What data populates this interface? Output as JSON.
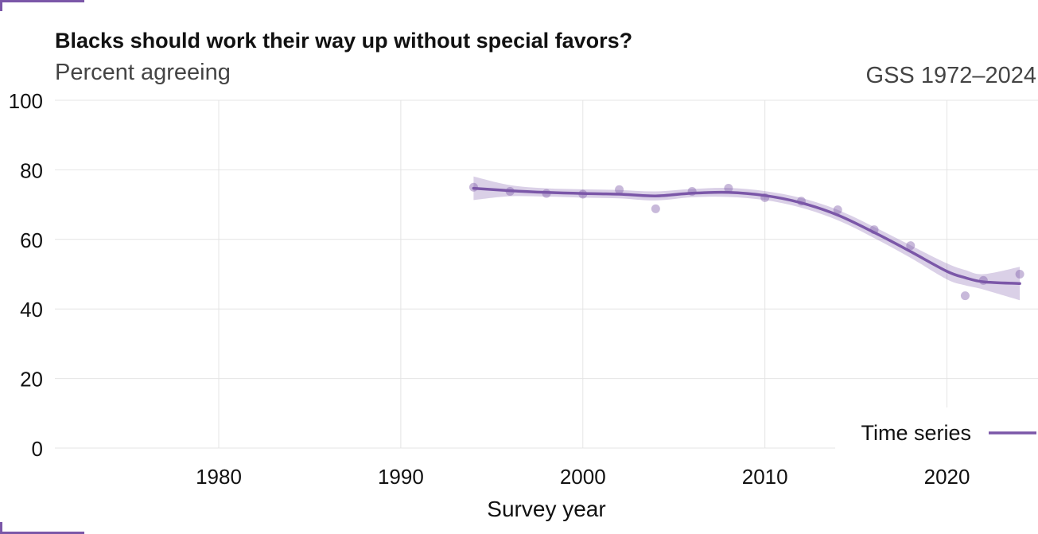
{
  "chart_data": {
    "type": "line",
    "title": "Blacks should work their way up without special favors?",
    "subtitle": "Percent agreeing",
    "source": "GSS 1972–2024",
    "xlabel": "Survey year",
    "ylabel": "",
    "xlim": [
      1971,
      2025
    ],
    "ylim": [
      0,
      100
    ],
    "x_ticks": [
      1980,
      1990,
      2000,
      2010,
      2020
    ],
    "y_ticks": [
      0,
      20,
      40,
      60,
      80,
      100
    ],
    "grid": true,
    "legend_position": "bottom-right",
    "accent_color": "#7b57a8",
    "points": {
      "x": [
        1994,
        1996,
        1998,
        2000,
        2002,
        2004,
        2006,
        2008,
        2010,
        2012,
        2014,
        2016,
        2018,
        2021,
        2022,
        2024
      ],
      "y": [
        75,
        73.8,
        73.2,
        73,
        74.3,
        68.8,
        73.8,
        74.7,
        72,
        71,
        68.5,
        62.8,
        58.2,
        43.8,
        48.2,
        50
      ]
    },
    "series": [
      {
        "name": "Time series",
        "x": [
          1994,
          1996,
          1998,
          2000,
          2002,
          2004,
          2006,
          2008,
          2010,
          2012,
          2014,
          2016,
          2018,
          2020,
          2021,
          2022,
          2024
        ],
        "values": [
          74.7,
          74.0,
          73.5,
          73.2,
          73.0,
          72.5,
          73.3,
          73.5,
          72.6,
          70.5,
          67.0,
          62.0,
          56.5,
          50.8,
          49.0,
          47.8,
          47.3
        ],
        "ci_lower": [
          71.3,
          72.4,
          72.3,
          72.0,
          71.8,
          71.2,
          72.1,
          72.2,
          71.3,
          69.1,
          65.5,
          60.4,
          54.7,
          48.5,
          46.8,
          45.6,
          42.5
        ],
        "ci_upper": [
          78.1,
          75.6,
          74.7,
          74.4,
          74.2,
          73.8,
          74.5,
          74.8,
          73.9,
          71.9,
          68.5,
          63.6,
          58.3,
          53.1,
          51.2,
          50.0,
          52.1
        ]
      }
    ]
  }
}
